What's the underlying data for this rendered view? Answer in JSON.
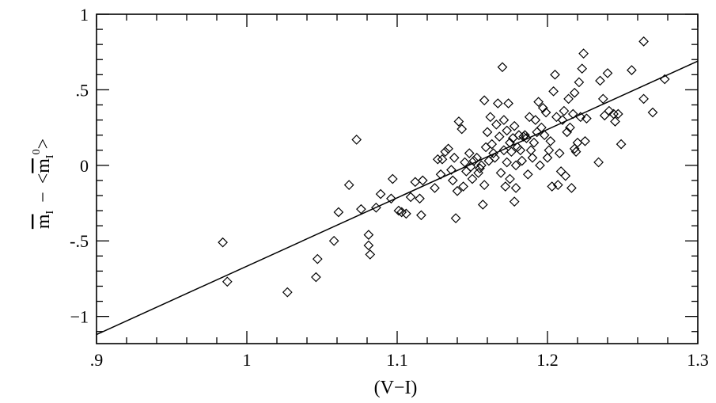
{
  "chart_data": {
    "type": "scatter",
    "title": "",
    "xlabel": "(V−I)",
    "ylabel_parts": {
      "m_left": "m",
      "sub_left": "I",
      "minus": "−",
      "open": "<",
      "m_right": "m",
      "sub_right": "I",
      "sup_right": "0",
      "close": ">"
    },
    "xlim": [
      0.9,
      1.3
    ],
    "ylim": [
      -1.18,
      1.0
    ],
    "x_ticks": [
      {
        "value": 0.9,
        "label": ".9"
      },
      {
        "value": 1.0,
        "label": "1"
      },
      {
        "value": 1.1,
        "label": "1.1"
      },
      {
        "value": 1.2,
        "label": "1.2"
      },
      {
        "value": 1.3,
        "label": "1.3"
      }
    ],
    "y_ticks": [
      {
        "value": 1.0,
        "label": "1"
      },
      {
        "value": 0.5,
        "label": ".5"
      },
      {
        "value": 0.0,
        "label": "0"
      },
      {
        "value": -0.5,
        "label": "-.5"
      },
      {
        "value": -1.0,
        "label": "−1"
      }
    ],
    "x_minor_step": 0.02,
    "y_minor_step": 0.1,
    "fit_line": {
      "x": [
        0.9,
        1.3
      ],
      "y": [
        -1.12,
        0.69
      ]
    },
    "marker": "diamond-open",
    "points": [
      [
        0.984,
        -0.51
      ],
      [
        0.987,
        -0.77
      ],
      [
        1.027,
        -0.84
      ],
      [
        1.046,
        -0.74
      ],
      [
        1.047,
        -0.62
      ],
      [
        1.058,
        -0.5
      ],
      [
        1.061,
        -0.31
      ],
      [
        1.068,
        -0.13
      ],
      [
        1.073,
        0.17
      ],
      [
        1.076,
        -0.29
      ],
      [
        1.081,
        -0.46
      ],
      [
        1.081,
        -0.53
      ],
      [
        1.082,
        -0.59
      ],
      [
        1.086,
        -0.28
      ],
      [
        1.089,
        -0.19
      ],
      [
        1.096,
        -0.22
      ],
      [
        1.097,
        -0.09
      ],
      [
        1.101,
        -0.3
      ],
      [
        1.103,
        -0.31
      ],
      [
        1.106,
        -0.32
      ],
      [
        1.109,
        -0.21
      ],
      [
        1.112,
        -0.11
      ],
      [
        1.115,
        -0.22
      ],
      [
        1.116,
        -0.33
      ],
      [
        1.117,
        -0.1
      ],
      [
        1.125,
        -0.15
      ],
      [
        1.127,
        0.04
      ],
      [
        1.129,
        -0.06
      ],
      [
        1.13,
        0.04
      ],
      [
        1.132,
        0.09
      ],
      [
        1.134,
        0.11
      ],
      [
        1.136,
        -0.03
      ],
      [
        1.137,
        -0.1
      ],
      [
        1.138,
        0.05
      ],
      [
        1.139,
        -0.35
      ],
      [
        1.14,
        -0.17
      ],
      [
        1.141,
        0.29
      ],
      [
        1.143,
        0.24
      ],
      [
        1.144,
        -0.14
      ],
      [
        1.145,
        0.02
      ],
      [
        1.146,
        -0.04
      ],
      [
        1.148,
        0.08
      ],
      [
        1.149,
        -0.01
      ],
      [
        1.15,
        -0.09
      ],
      [
        1.151,
        0.03
      ],
      [
        1.153,
        0.05
      ],
      [
        1.154,
        -0.05
      ],
      [
        1.155,
        -0.02
      ],
      [
        1.156,
        0.0
      ],
      [
        1.157,
        -0.26
      ],
      [
        1.158,
        0.43
      ],
      [
        1.158,
        -0.13
      ],
      [
        1.159,
        0.12
      ],
      [
        1.16,
        0.22
      ],
      [
        1.161,
        0.03
      ],
      [
        1.162,
        0.32
      ],
      [
        1.163,
        0.14
      ],
      [
        1.164,
        0.08
      ],
      [
        1.165,
        0.05
      ],
      [
        1.166,
        0.27
      ],
      [
        1.167,
        0.41
      ],
      [
        1.168,
        0.19
      ],
      [
        1.169,
        -0.05
      ],
      [
        1.17,
        0.65
      ],
      [
        1.171,
        0.1
      ],
      [
        1.171,
        0.3
      ],
      [
        1.172,
        -0.14
      ],
      [
        1.173,
        0.02
      ],
      [
        1.173,
        0.23
      ],
      [
        1.174,
        0.41
      ],
      [
        1.175,
        0.15
      ],
      [
        1.175,
        -0.09
      ],
      [
        1.176,
        0.09
      ],
      [
        1.177,
        0.18
      ],
      [
        1.178,
        0.26
      ],
      [
        1.178,
        -0.24
      ],
      [
        1.179,
        0.0
      ],
      [
        1.179,
        -0.15
      ],
      [
        1.18,
        0.12
      ],
      [
        1.181,
        0.2
      ],
      [
        1.182,
        0.1
      ],
      [
        1.183,
        0.03
      ],
      [
        1.184,
        0.19
      ],
      [
        1.185,
        0.2
      ],
      [
        1.186,
        0.18
      ],
      [
        1.187,
        -0.06
      ],
      [
        1.188,
        0.32
      ],
      [
        1.189,
        0.1
      ],
      [
        1.19,
        0.05
      ],
      [
        1.191,
        0.15
      ],
      [
        1.192,
        0.3
      ],
      [
        1.193,
        0.22
      ],
      [
        1.194,
        0.42
      ],
      [
        1.195,
        0.0
      ],
      [
        1.196,
        0.25
      ],
      [
        1.197,
        0.38
      ],
      [
        1.198,
        0.2
      ],
      [
        1.199,
        0.35
      ],
      [
        1.2,
        0.05
      ],
      [
        1.201,
        0.1
      ],
      [
        1.202,
        0.16
      ],
      [
        1.203,
        -0.14
      ],
      [
        1.204,
        0.49
      ],
      [
        1.205,
        0.6
      ],
      [
        1.206,
        0.32
      ],
      [
        1.207,
        -0.13
      ],
      [
        1.208,
        0.08
      ],
      [
        1.209,
        -0.04
      ],
      [
        1.21,
        0.3
      ],
      [
        1.211,
        0.36
      ],
      [
        1.212,
        -0.07
      ],
      [
        1.213,
        0.22
      ],
      [
        1.214,
        0.44
      ],
      [
        1.215,
        0.25
      ],
      [
        1.216,
        -0.15
      ],
      [
        1.217,
        0.34
      ],
      [
        1.218,
        0.11
      ],
      [
        1.218,
        0.48
      ],
      [
        1.219,
        0.09
      ],
      [
        1.22,
        0.15
      ],
      [
        1.221,
        0.55
      ],
      [
        1.222,
        0.32
      ],
      [
        1.223,
        0.64
      ],
      [
        1.224,
        0.74
      ],
      [
        1.225,
        0.16
      ],
      [
        1.226,
        0.31
      ],
      [
        1.234,
        0.02
      ],
      [
        1.235,
        0.56
      ],
      [
        1.237,
        0.44
      ],
      [
        1.238,
        0.33
      ],
      [
        1.24,
        0.61
      ],
      [
        1.241,
        0.36
      ],
      [
        1.244,
        0.34
      ],
      [
        1.245,
        0.29
      ],
      [
        1.247,
        0.34
      ],
      [
        1.249,
        0.14
      ],
      [
        1.256,
        0.63
      ],
      [
        1.264,
        0.82
      ],
      [
        1.264,
        0.44
      ],
      [
        1.27,
        0.35
      ],
      [
        1.278,
        0.57
      ]
    ]
  }
}
